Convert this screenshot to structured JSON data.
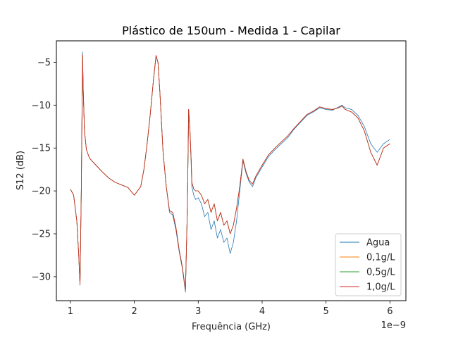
{
  "chart_data": {
    "type": "line",
    "title": "Plástico de 150um - Medida 1 - Capilar",
    "xlabel": "Frequência (GHz)",
    "ylabel": "S12 (dB)",
    "x_offset_label": "1e−9",
    "xlim": [
      0.78,
      6.25
    ],
    "ylim": [
      -32.8,
      -2.5
    ],
    "xticks": [
      1,
      2,
      3,
      4,
      5,
      6
    ],
    "xtick_labels": [
      "1",
      "2",
      "3",
      "4",
      "5",
      "6"
    ],
    "yticks": [
      -30,
      -25,
      -20,
      -15,
      -10,
      -5
    ],
    "ytick_labels": [
      "−30",
      "−25",
      "−20",
      "−15",
      "−10",
      "−5"
    ],
    "grid": false,
    "legend_position": "lower-right",
    "series": [
      {
        "name": "Agua",
        "color": "#1f77b4",
        "x": [
          1.0,
          1.05,
          1.1,
          1.13,
          1.15,
          1.17,
          1.19,
          1.2,
          1.22,
          1.25,
          1.3,
          1.4,
          1.5,
          1.6,
          1.7,
          1.8,
          1.9,
          2.0,
          2.05,
          2.1,
          2.15,
          2.2,
          2.25,
          2.3,
          2.34,
          2.37,
          2.4,
          2.45,
          2.5,
          2.55,
          2.6,
          2.65,
          2.7,
          2.75,
          2.8,
          2.83,
          2.85,
          2.87,
          2.89,
          2.9,
          2.93,
          2.96,
          3.0,
          3.05,
          3.1,
          3.15,
          3.2,
          3.25,
          3.3,
          3.35,
          3.4,
          3.45,
          3.5,
          3.55,
          3.6,
          3.65,
          3.7,
          3.75,
          3.8,
          3.85,
          3.9,
          4.0,
          4.1,
          4.2,
          4.3,
          4.4,
          4.5,
          4.6,
          4.7,
          4.8,
          4.9,
          5.0,
          5.1,
          5.2,
          5.25,
          5.3,
          5.4,
          5.5,
          5.6,
          5.7,
          5.8,
          5.9,
          6.0
        ],
        "y": [
          -19.8,
          -20.5,
          -23.5,
          -27.5,
          -31.0,
          -20.0,
          -3.8,
          -8.0,
          -13.0,
          -15.2,
          -16.2,
          -17.0,
          -17.8,
          -18.5,
          -19.0,
          -19.3,
          -19.6,
          -20.5,
          -20.0,
          -19.5,
          -17.5,
          -14.5,
          -11.0,
          -7.0,
          -4.3,
          -5.0,
          -8.5,
          -15.5,
          -19.5,
          -22.5,
          -22.8,
          -24.5,
          -27.0,
          -29.0,
          -31.8,
          -22.0,
          -10.5,
          -13.0,
          -17.0,
          -19.5,
          -20.5,
          -21.0,
          -20.8,
          -21.5,
          -23.0,
          -22.5,
          -24.5,
          -23.5,
          -25.5,
          -24.5,
          -26.0,
          -25.5,
          -27.3,
          -26.0,
          -23.5,
          -20.0,
          -16.5,
          -18.0,
          -19.0,
          -19.5,
          -18.5,
          -17.2,
          -16.0,
          -15.2,
          -14.5,
          -13.8,
          -12.8,
          -12.0,
          -11.2,
          -10.8,
          -10.3,
          -10.5,
          -10.6,
          -10.2,
          -10.0,
          -10.3,
          -10.5,
          -11.2,
          -12.5,
          -14.5,
          -15.5,
          -14.5,
          -14.0
        ]
      },
      {
        "name": "0,1g/L",
        "color": "#ff7f0e",
        "x": [
          1.0,
          1.05,
          1.1,
          1.13,
          1.15,
          1.17,
          1.19,
          1.2,
          1.22,
          1.25,
          1.3,
          1.4,
          1.5,
          1.6,
          1.7,
          1.8,
          1.9,
          2.0,
          2.05,
          2.1,
          2.15,
          2.2,
          2.25,
          2.3,
          2.34,
          2.37,
          2.4,
          2.45,
          2.5,
          2.55,
          2.6,
          2.65,
          2.7,
          2.75,
          2.8,
          2.83,
          2.85,
          2.87,
          2.89,
          2.9,
          2.93,
          2.96,
          3.0,
          3.05,
          3.1,
          3.15,
          3.2,
          3.25,
          3.3,
          3.35,
          3.4,
          3.45,
          3.5,
          3.55,
          3.6,
          3.65,
          3.7,
          3.75,
          3.8,
          3.85,
          3.9,
          4.0,
          4.1,
          4.2,
          4.3,
          4.4,
          4.5,
          4.6,
          4.7,
          4.8,
          4.9,
          5.0,
          5.1,
          5.2,
          5.25,
          5.3,
          5.4,
          5.5,
          5.6,
          5.7,
          5.8,
          5.9,
          6.0
        ],
        "y": [
          -19.8,
          -20.5,
          -23.5,
          -27.5,
          -30.8,
          -20.0,
          -4.2,
          -8.2,
          -13.0,
          -15.2,
          -16.2,
          -17.0,
          -17.8,
          -18.5,
          -19.0,
          -19.3,
          -19.6,
          -20.5,
          -20.0,
          -19.5,
          -17.5,
          -14.5,
          -11.0,
          -7.0,
          -4.2,
          -5.0,
          -8.5,
          -15.5,
          -19.5,
          -22.3,
          -22.5,
          -24.2,
          -26.8,
          -28.8,
          -31.5,
          -22.0,
          -10.5,
          -12.8,
          -16.5,
          -19.0,
          -19.8,
          -20.0,
          -20.0,
          -20.5,
          -21.5,
          -21.0,
          -22.5,
          -21.5,
          -23.5,
          -22.5,
          -24.0,
          -23.5,
          -25.0,
          -24.0,
          -22.0,
          -19.5,
          -16.3,
          -17.8,
          -18.8,
          -19.2,
          -18.3,
          -17.0,
          -15.8,
          -15.0,
          -14.3,
          -13.6,
          -12.7,
          -11.9,
          -11.1,
          -10.7,
          -10.2,
          -10.4,
          -10.5,
          -10.3,
          -10.1,
          -10.5,
          -10.8,
          -11.5,
          -13.0,
          -15.5,
          -17.0,
          -15.0,
          -14.5
        ]
      },
      {
        "name": "0,5g/L",
        "color": "#2ca02c",
        "x": [
          1.0,
          1.05,
          1.1,
          1.13,
          1.15,
          1.17,
          1.19,
          1.2,
          1.22,
          1.25,
          1.3,
          1.4,
          1.5,
          1.6,
          1.7,
          1.8,
          1.9,
          2.0,
          2.05,
          2.1,
          2.15,
          2.2,
          2.25,
          2.3,
          2.34,
          2.37,
          2.4,
          2.45,
          2.5,
          2.55,
          2.6,
          2.65,
          2.7,
          2.75,
          2.8,
          2.83,
          2.85,
          2.87,
          2.89,
          2.9,
          2.93,
          2.96,
          3.0,
          3.05,
          3.1,
          3.15,
          3.2,
          3.25,
          3.3,
          3.35,
          3.4,
          3.45,
          3.5,
          3.55,
          3.6,
          3.65,
          3.7,
          3.75,
          3.8,
          3.85,
          3.9,
          4.0,
          4.1,
          4.2,
          4.3,
          4.4,
          4.5,
          4.6,
          4.7,
          4.8,
          4.9,
          5.0,
          5.1,
          5.2,
          5.25,
          5.3,
          5.4,
          5.5,
          5.6,
          5.7,
          5.8,
          5.9,
          6.0
        ],
        "y": [
          -19.8,
          -20.5,
          -23.5,
          -27.5,
          -30.9,
          -20.0,
          -4.1,
          -8.2,
          -13.0,
          -15.2,
          -16.2,
          -17.0,
          -17.8,
          -18.5,
          -19.0,
          -19.3,
          -19.6,
          -20.5,
          -20.0,
          -19.5,
          -17.5,
          -14.5,
          -11.0,
          -7.0,
          -4.2,
          -5.0,
          -8.5,
          -15.5,
          -19.5,
          -22.3,
          -22.5,
          -24.2,
          -26.8,
          -28.8,
          -31.5,
          -22.0,
          -10.5,
          -12.8,
          -16.5,
          -19.0,
          -19.8,
          -20.0,
          -20.0,
          -20.5,
          -21.5,
          -21.0,
          -22.5,
          -21.5,
          -23.5,
          -22.5,
          -24.0,
          -23.5,
          -25.0,
          -24.0,
          -22.0,
          -19.5,
          -16.3,
          -17.8,
          -18.8,
          -19.2,
          -18.3,
          -17.0,
          -15.8,
          -15.0,
          -14.3,
          -13.6,
          -12.7,
          -11.9,
          -11.1,
          -10.7,
          -10.2,
          -10.4,
          -10.5,
          -10.3,
          -10.1,
          -10.5,
          -10.8,
          -11.5,
          -13.0,
          -15.5,
          -17.0,
          -15.0,
          -14.5
        ]
      },
      {
        "name": "1,0g/L",
        "color": "#d62728",
        "x": [
          1.0,
          1.05,
          1.1,
          1.13,
          1.15,
          1.17,
          1.19,
          1.2,
          1.22,
          1.25,
          1.3,
          1.4,
          1.5,
          1.6,
          1.7,
          1.8,
          1.9,
          2.0,
          2.05,
          2.1,
          2.15,
          2.2,
          2.25,
          2.3,
          2.34,
          2.37,
          2.4,
          2.45,
          2.5,
          2.55,
          2.6,
          2.65,
          2.7,
          2.75,
          2.8,
          2.83,
          2.85,
          2.87,
          2.89,
          2.9,
          2.93,
          2.96,
          3.0,
          3.05,
          3.1,
          3.15,
          3.2,
          3.25,
          3.3,
          3.35,
          3.4,
          3.45,
          3.5,
          3.55,
          3.6,
          3.65,
          3.7,
          3.75,
          3.8,
          3.85,
          3.9,
          4.0,
          4.1,
          4.2,
          4.3,
          4.4,
          4.5,
          4.6,
          4.7,
          4.8,
          4.9,
          5.0,
          5.1,
          5.2,
          5.25,
          5.3,
          5.4,
          5.5,
          5.6,
          5.7,
          5.8,
          5.9,
          6.0
        ],
        "y": [
          -19.8,
          -20.5,
          -23.5,
          -27.5,
          -30.9,
          -20.0,
          -4.1,
          -8.2,
          -13.0,
          -15.2,
          -16.2,
          -17.0,
          -17.8,
          -18.5,
          -19.0,
          -19.3,
          -19.6,
          -20.5,
          -20.0,
          -19.5,
          -17.5,
          -14.5,
          -11.0,
          -7.0,
          -4.2,
          -5.0,
          -8.5,
          -15.5,
          -19.5,
          -22.3,
          -22.5,
          -24.2,
          -26.8,
          -28.8,
          -31.5,
          -22.0,
          -10.5,
          -12.8,
          -16.5,
          -19.0,
          -19.8,
          -20.0,
          -20.0,
          -20.5,
          -21.5,
          -21.0,
          -22.5,
          -21.5,
          -23.5,
          -22.5,
          -24.0,
          -23.5,
          -25.0,
          -24.0,
          -22.0,
          -19.5,
          -16.3,
          -17.8,
          -18.8,
          -19.2,
          -18.3,
          -17.0,
          -15.8,
          -15.0,
          -14.3,
          -13.6,
          -12.7,
          -11.9,
          -11.1,
          -10.7,
          -10.2,
          -10.4,
          -10.5,
          -10.3,
          -10.1,
          -10.5,
          -10.8,
          -11.5,
          -13.0,
          -15.5,
          -17.0,
          -15.0,
          -14.5
        ]
      }
    ]
  }
}
